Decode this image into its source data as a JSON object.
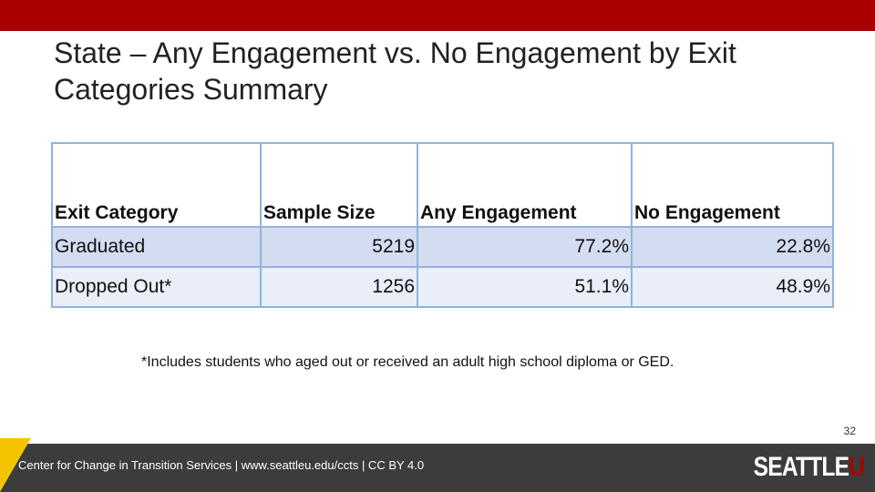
{
  "slide": {
    "title": "State – Any Engagement vs. No Engagement by Exit Categories Summary",
    "page_number": "32",
    "accent_color": "#aa0000",
    "footer_color": "#3c3c3c",
    "footer_accent_color": "#f5c400"
  },
  "table": {
    "headers": [
      "Exit Category",
      "Sample Size",
      "Any Engagement",
      "No Engagement"
    ],
    "rows": [
      [
        "Graduated",
        "5219",
        "77.2%",
        "22.8%"
      ],
      [
        "Dropped Out*",
        "1256",
        "51.1%",
        "48.9%"
      ]
    ],
    "border_color": "#8eb4dc",
    "row_colors": [
      "#d3dcf0",
      "#e9eef8"
    ]
  },
  "footnote": "*Includes students who aged out or received an adult high school diploma or GED.",
  "footer": {
    "text": "Center for Change in Transition Services | www.seattleu.edu/ccts | CC BY 4.0",
    "logo_main": "SEATTLE",
    "logo_accent": "U"
  }
}
